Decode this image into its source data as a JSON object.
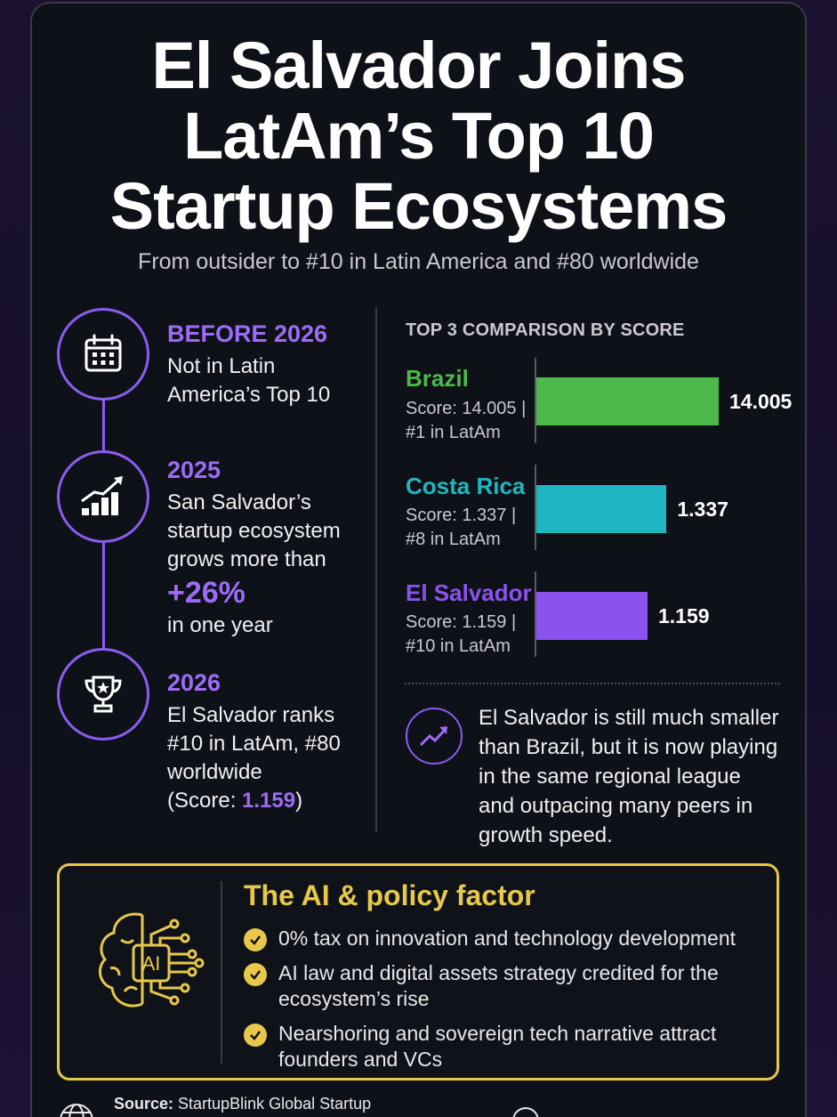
{
  "header": {
    "title_lines": [
      "El Salvador Joins",
      "LatAm’s Top 10",
      "Startup Ecosystems"
    ],
    "subtitle": "From outsider to #10 in Latin America and #80 worldwide"
  },
  "timeline": [
    {
      "heading": "BEFORE 2026",
      "text": "Not in Latin America’s Top 10",
      "icon": "calendar-icon"
    },
    {
      "heading": "2025",
      "text_before": "San Salvador’s startup ecosystem grows more than",
      "highlight": "+26%",
      "text_after": "in one year",
      "icon": "growth-chart-icon"
    },
    {
      "heading": "2026",
      "text": "El Salvador ranks #10 in LatAm, #80 worldwide",
      "score_prefix": "(Score: ",
      "score_value": "1.159",
      "score_suffix": ")",
      "icon": "trophy-icon"
    }
  ],
  "chart_data": {
    "type": "bar",
    "orientation": "horizontal",
    "title": "TOP 3 COMPARISON BY SCORE",
    "categories": [
      "Brazil",
      "Costa Rica",
      "El Salvador"
    ],
    "values": [
      14.005,
      1.337,
      1.159
    ],
    "value_labels": [
      "14.005",
      "1.337",
      "1.159"
    ],
    "details": [
      "Score: 14.005 | #1 in LatAm",
      "Score: 1.337 | #8 in LatAm",
      "Score: 1.159 | #10 in LatAm"
    ],
    "colors": [
      "#4cb94a",
      "#1fb6c1",
      "#8a52ee"
    ]
  },
  "note": {
    "text": "El Salvador is still much smaller than Brazil, but it is now playing in the same regional league and outpacing many peers in growth speed.",
    "icon": "trend-up-icon"
  },
  "ai_factor": {
    "title": "The AI & policy factor",
    "icon_label": "AI",
    "items": [
      "0% tax on innovation and technology development",
      "AI law and digital assets strategy credited for the ecosystem’s rise",
      "Nearshoring and sovereign tech narrative attract founders and VCs"
    ]
  },
  "source": {
    "label": "Source:",
    "text": "StartupBlink Global Startup"
  },
  "colors": {
    "accent_purple": "#9d6cf7",
    "accent_gold": "#e7c84a",
    "card_bg": "#0e1117"
  }
}
